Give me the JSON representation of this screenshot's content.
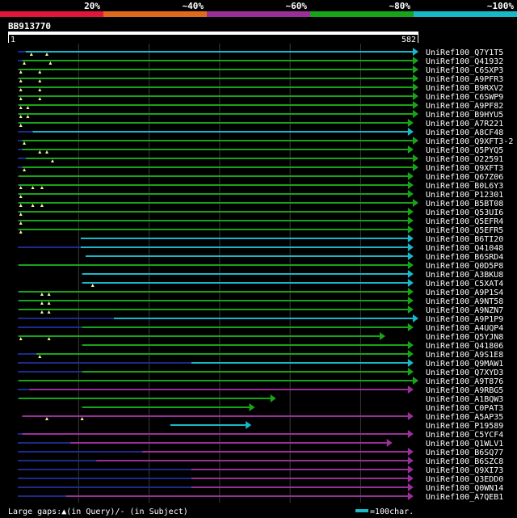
{
  "legend": {
    "ranges": [
      {
        "label": "20%",
        "color": "#e0173a"
      },
      {
        "label": "~40%",
        "color": "#e06a1b"
      },
      {
        "label": "~60%",
        "color": "#9a2f9a"
      },
      {
        "label": "~80%",
        "color": "#18a418"
      },
      {
        "label": "~100%",
        "color": "#19b8c8"
      }
    ]
  },
  "query": {
    "id": "BB913770",
    "start_label": "1",
    "end_label": "582",
    "length": 582
  },
  "footer": {
    "gaps_text": "Large gaps:▲(in Query)/- (in Subject)",
    "scale_text": "=100char.",
    "scale_color": "#19b8c8"
  },
  "hits": [
    {
      "name": "UniRef100_Q7Y1T5",
      "start": 25,
      "end": 582,
      "color": "#19b8c8",
      "line_from": 0,
      "gaps": [
        33,
        55
      ]
    },
    {
      "name": "UniRef100_Q41932",
      "start": 20,
      "end": 582,
      "color": "#18a418",
      "line_from": 0,
      "gaps": [
        23,
        60
      ]
    },
    {
      "name": "UniRef100_C6SXP3",
      "start": 15,
      "end": 582,
      "color": "#18a418",
      "line_from": 0,
      "gaps": [
        18,
        45
      ]
    },
    {
      "name": "UniRef100_A9PFR3",
      "start": 15,
      "end": 582,
      "color": "#18a418",
      "line_from": 0,
      "gaps": [
        18,
        45
      ]
    },
    {
      "name": "UniRef100_B9RXV2",
      "start": 15,
      "end": 582,
      "color": "#18a418",
      "line_from": 0,
      "gaps": [
        18,
        45
      ]
    },
    {
      "name": "UniRef100_C6SWP9",
      "start": 15,
      "end": 582,
      "color": "#18a418",
      "line_from": 0,
      "gaps": [
        18,
        45
      ]
    },
    {
      "name": "UniRef100_A9PF82",
      "start": 15,
      "end": 582,
      "color": "#18a418",
      "line_from": 0,
      "gaps": [
        18,
        28
      ]
    },
    {
      "name": "UniRef100_B9HYU5",
      "start": 15,
      "end": 582,
      "color": "#18a418",
      "line_from": 0,
      "gaps": [
        18,
        28
      ]
    },
    {
      "name": "UniRef100_A7R221",
      "start": 15,
      "end": 575,
      "color": "#18a418",
      "line_from": 0,
      "gaps": [
        18
      ]
    },
    {
      "name": "UniRef100_A8CF48",
      "start": 35,
      "end": 575,
      "color": "#19b8c8",
      "line_from": 0,
      "gaps": []
    },
    {
      "name": "UniRef100_Q9XFT3-2",
      "start": 20,
      "end": 582,
      "color": "#18a418",
      "line_from": 0,
      "gaps": [
        23
      ]
    },
    {
      "name": "UniRef100_Q5PYQ5",
      "start": 20,
      "end": 575,
      "color": "#18a418",
      "line_from": 0,
      "gaps": [
        45,
        55
      ]
    },
    {
      "name": "UniRef100_O22591",
      "start": 25,
      "end": 582,
      "color": "#18a418",
      "line_from": 0,
      "gaps": [
        63
      ]
    },
    {
      "name": "UniRef100_Q9XFT3",
      "start": 20,
      "end": 582,
      "color": "#18a418",
      "line_from": 0,
      "gaps": [
        23
      ]
    },
    {
      "name": "UniRef100_Q67Z06",
      "start": 15,
      "end": 575,
      "color": "#18a418",
      "line_from": 0,
      "gaps": []
    },
    {
      "name": "UniRef100_B0L6Y3",
      "start": 15,
      "end": 575,
      "color": "#18a418",
      "line_from": 0,
      "gaps": [
        18,
        35,
        48
      ]
    },
    {
      "name": "UniRef100_P12301",
      "start": 15,
      "end": 575,
      "color": "#18a418",
      "line_from": 0,
      "gaps": [
        18
      ]
    },
    {
      "name": "UniRef100_B5BT08",
      "start": 15,
      "end": 582,
      "color": "#18a418",
      "line_from": 0,
      "gaps": [
        18,
        35,
        48
      ]
    },
    {
      "name": "UniRef100_Q53UI6",
      "start": 15,
      "end": 575,
      "color": "#18a418",
      "line_from": 0,
      "gaps": [
        18
      ]
    },
    {
      "name": "UniRef100_Q5EFR4",
      "start": 15,
      "end": 575,
      "color": "#18a418",
      "line_from": 0,
      "gaps": [
        18
      ]
    },
    {
      "name": "UniRef100_Q5EFR5",
      "start": 15,
      "end": 575,
      "color": "#18a418",
      "line_from": 0,
      "gaps": [
        18
      ]
    },
    {
      "name": "UniRef100_B6TI20",
      "start": 103,
      "end": 575,
      "color": "#19b8c8",
      "line_from": null,
      "gaps": []
    },
    {
      "name": "UniRef100_Q41048",
      "start": 103,
      "end": 575,
      "color": "#19b8c8",
      "line_from": 0,
      "gaps": []
    },
    {
      "name": "UniRef100_B6SRD4",
      "start": 110,
      "end": 575,
      "color": "#19b8c8",
      "line_from": null,
      "gaps": []
    },
    {
      "name": "UniRef100_Q0D5P8",
      "start": 15,
      "end": 575,
      "color": "#18a418",
      "line_from": 0,
      "gaps": []
    },
    {
      "name": "UniRef100_A3BKU8",
      "start": 105,
      "end": 575,
      "color": "#19b8c8",
      "line_from": null,
      "gaps": []
    },
    {
      "name": "UniRef100_C5XAT4",
      "start": 105,
      "end": 575,
      "color": "#19b8c8",
      "line_from": null,
      "gaps": [
        120
      ]
    },
    {
      "name": "UniRef100_A9P1S4",
      "start": 15,
      "end": 575,
      "color": "#18a418",
      "line_from": 0,
      "gaps": [
        48,
        58
      ]
    },
    {
      "name": "UniRef100_A9NT58",
      "start": 15,
      "end": 575,
      "color": "#18a418",
      "line_from": 0,
      "gaps": [
        48,
        58
      ]
    },
    {
      "name": "UniRef100_A9NZN7",
      "start": 15,
      "end": 575,
      "color": "#18a418",
      "line_from": 0,
      "gaps": [
        48,
        58
      ]
    },
    {
      "name": "UniRef100_A9P1P9",
      "start": 150,
      "end": 582,
      "color": "#19b8c8",
      "line_from": 0,
      "gaps": []
    },
    {
      "name": "UniRef100_A4UQP4",
      "start": 105,
      "end": 575,
      "color": "#18a418",
      "line_from": 0,
      "gaps": []
    },
    {
      "name": "UniRef100_Q5YJN8",
      "start": 15,
      "end": 535,
      "color": "#18a418",
      "line_from": 0,
      "gaps": [
        18,
        58
      ]
    },
    {
      "name": "UniRef100_Q41806",
      "start": 105,
      "end": 575,
      "color": "#18a418",
      "line_from": null,
      "gaps": []
    },
    {
      "name": "UniRef100_A9S1E8",
      "start": 40,
      "end": 575,
      "color": "#18a418",
      "line_from": 0,
      "gaps": [
        45
      ]
    },
    {
      "name": "UniRef100_Q9MAW1",
      "start": 260,
      "end": 575,
      "color": "#19b8c8",
      "line_from": 0,
      "gaps": []
    },
    {
      "name": "UniRef100_Q7XYD3",
      "start": 105,
      "end": 575,
      "color": "#18a418",
      "line_from": 0,
      "gaps": []
    },
    {
      "name": "UniRef100_A9T876",
      "start": 15,
      "end": 582,
      "color": "#18a418",
      "line_from": 0,
      "gaps": []
    },
    {
      "name": "UniRef100_A9RBG5",
      "start": 30,
      "end": 575,
      "color": "#9a2f9a",
      "line_from": 0,
      "gaps": []
    },
    {
      "name": "UniRef100_A1BQW3",
      "start": 15,
      "end": 380,
      "color": "#18a418",
      "line_from": 0,
      "gaps": []
    },
    {
      "name": "UniRef100_C0PAT3",
      "start": 105,
      "end": 350,
      "color": "#18a418",
      "line_from": null,
      "gaps": []
    },
    {
      "name": "UniRef100_A5AP35",
      "start": 20,
      "end": 575,
      "color": "#9a2f9a",
      "line_from": null,
      "gaps": [
        55,
        105
      ]
    },
    {
      "name": "UniRef100_P19589",
      "start": 230,
      "end": 345,
      "color": "#19b8c8",
      "line_from": null,
      "gaps": []
    },
    {
      "name": "UniRef100_C5YCF4",
      "start": 20,
      "end": 575,
      "color": "#9a2f9a",
      "line_from": 0,
      "gaps": []
    },
    {
      "name": "UniRef100_Q1WLV1",
      "start": 88,
      "end": 545,
      "color": "#9a2f9a",
      "line_from": 0,
      "gaps": []
    },
    {
      "name": "UniRef100_B6SQ77",
      "start": 190,
      "end": 575,
      "color": "#9a2f9a",
      "line_from": 0,
      "gaps": []
    },
    {
      "name": "UniRef100_B6SZC8",
      "start": 125,
      "end": 575,
      "color": "#9a2f9a",
      "line_from": 0,
      "gaps": []
    },
    {
      "name": "UniRef100_Q9XI73",
      "start": 260,
      "end": 575,
      "color": "#9a2f9a",
      "line_from": 0,
      "gaps": []
    },
    {
      "name": "UniRef100_Q3EDD0",
      "start": 260,
      "end": 575,
      "color": "#9a2f9a",
      "line_from": 0,
      "gaps": []
    },
    {
      "name": "UniRef100_Q0WN14",
      "start": 260,
      "end": 575,
      "color": "#9a2f9a",
      "line_from": 0,
      "gaps": []
    },
    {
      "name": "UniRef100_A7QEB1",
      "start": 82,
      "end": 575,
      "color": "#9a2f9a",
      "line_from": 0,
      "gaps": []
    }
  ]
}
